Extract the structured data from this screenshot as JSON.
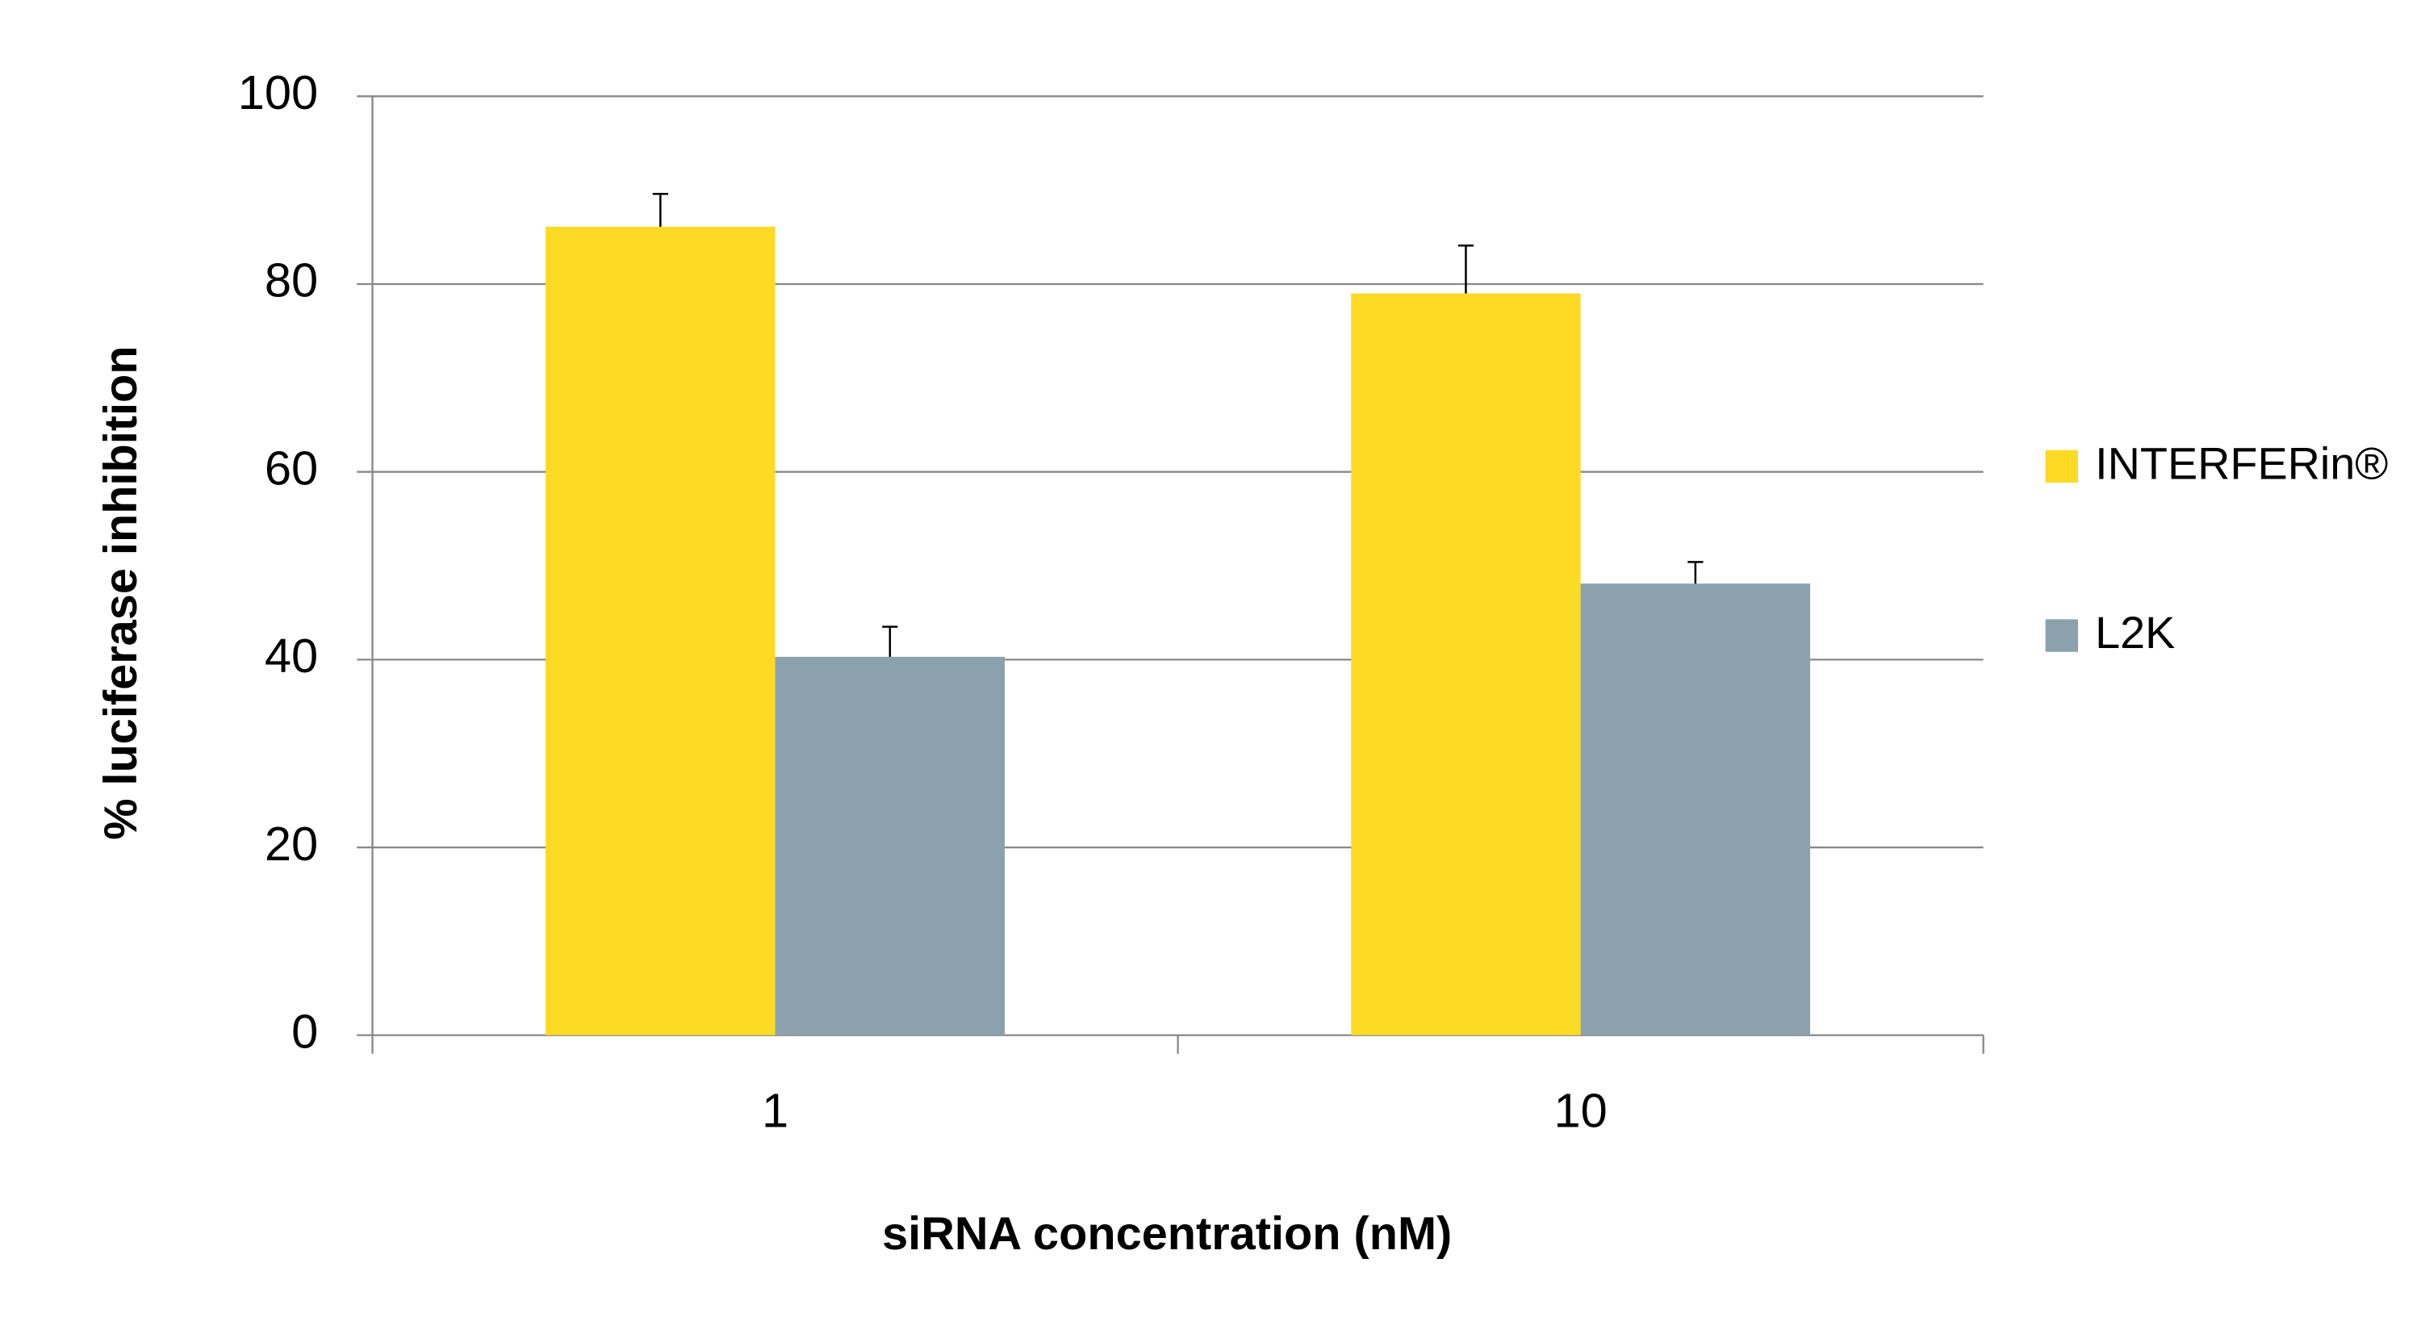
{
  "chart_data": {
    "type": "bar",
    "x_label": "siRNA concentration (nM)",
    "y_label": "% luciferase inhibition",
    "categories": [
      "1",
      "10"
    ],
    "series": [
      {
        "name": "INTERFERin®",
        "color": "#fdda24",
        "values": [
          86.1,
          79.0
        ],
        "errors": [
          3.5,
          5.1
        ]
      },
      {
        "name": "L2K",
        "color": "#8ba2ae",
        "values": [
          40.3,
          48.1
        ],
        "errors": [
          3.2,
          2.3
        ]
      }
    ],
    "ylim": [
      0,
      100
    ],
    "yticks": [
      0,
      20,
      40,
      60,
      80,
      100
    ],
    "grid": true,
    "legend": "right"
  }
}
